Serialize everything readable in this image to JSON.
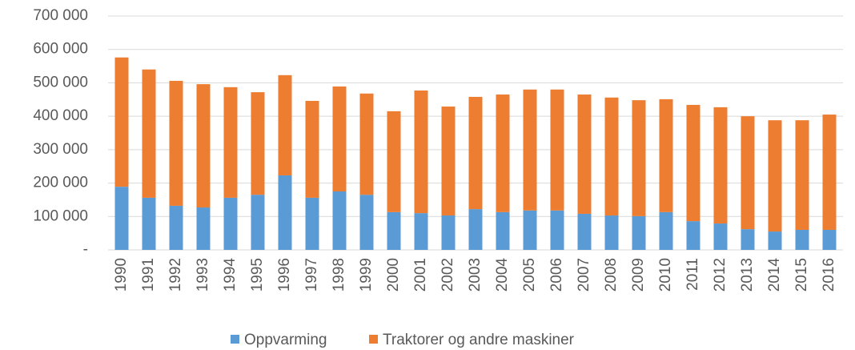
{
  "chart_data": {
    "type": "stacked_bar",
    "categories": [
      "1990",
      "1991",
      "1992",
      "1993",
      "1994",
      "1995",
      "1996",
      "1997",
      "1998",
      "1999",
      "2000",
      "2001",
      "2002",
      "2003",
      "2004",
      "2005",
      "2006",
      "2007",
      "2008",
      "2009",
      "2010",
      "2011",
      "2012",
      "2013",
      "2014",
      "2015",
      "2016"
    ],
    "series": [
      {
        "name": "Oppvarming",
        "color": "#5b9bd5",
        "values": [
          189000,
          156000,
          132000,
          127000,
          156000,
          165000,
          223000,
          156000,
          175000,
          165000,
          113000,
          110000,
          103000,
          122000,
          113000,
          118000,
          118000,
          108000,
          103000,
          101000,
          113000,
          86000,
          79000,
          62000,
          55000,
          60000,
          60000
        ]
      },
      {
        "name": "Traktorer og andre maskiner",
        "color": "#ed7d31",
        "values": [
          387000,
          384000,
          374000,
          369000,
          331000,
          307000,
          300000,
          290000,
          314000,
          303000,
          302000,
          367000,
          326000,
          336000,
          352000,
          362000,
          362000,
          357000,
          353000,
          347000,
          338000,
          348000,
          348000,
          338000,
          333000,
          328000,
          345000
        ]
      }
    ],
    "ylim": [
      0,
      700000
    ],
    "yticks": [
      {
        "value": 0,
        "label": "-"
      },
      {
        "value": 100000,
        "label": "100 000"
      },
      {
        "value": 200000,
        "label": "200 000"
      },
      {
        "value": 300000,
        "label": "300 000"
      },
      {
        "value": 400000,
        "label": "400 000"
      },
      {
        "value": 500000,
        "label": "500 000"
      },
      {
        "value": 600000,
        "label": "600 000"
      },
      {
        "value": 700000,
        "label": "700 000"
      }
    ],
    "grid": true,
    "legend": "bottom"
  }
}
